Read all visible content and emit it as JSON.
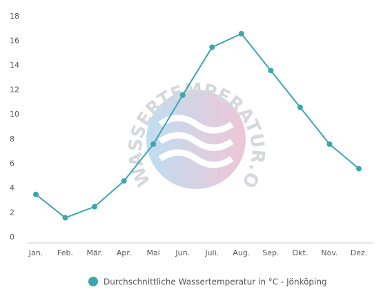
{
  "chart_data": {
    "type": "line",
    "categories": [
      "Jan.",
      "Feb.",
      "Mär.",
      "Apr.",
      "Mai",
      "Jun.",
      "Juli.",
      "Aug.",
      "Sep.",
      "Okt.",
      "Nov.",
      "Dez."
    ],
    "series": [
      {
        "name": "Durchschnittliche Wassertemperatur in °C - Jönköping",
        "color": "#3ba6ae",
        "values": [
          3.5,
          1.6,
          2.5,
          4.6,
          7.6,
          11.6,
          15.5,
          16.6,
          13.6,
          10.6,
          7.6,
          5.6
        ]
      }
    ],
    "ylim": [
      0,
      18
    ],
    "yticks": [
      0,
      2,
      4,
      6,
      8,
      10,
      12,
      14,
      16,
      18
    ],
    "watermark": "WASSERTEMPERATUR.ORG"
  }
}
